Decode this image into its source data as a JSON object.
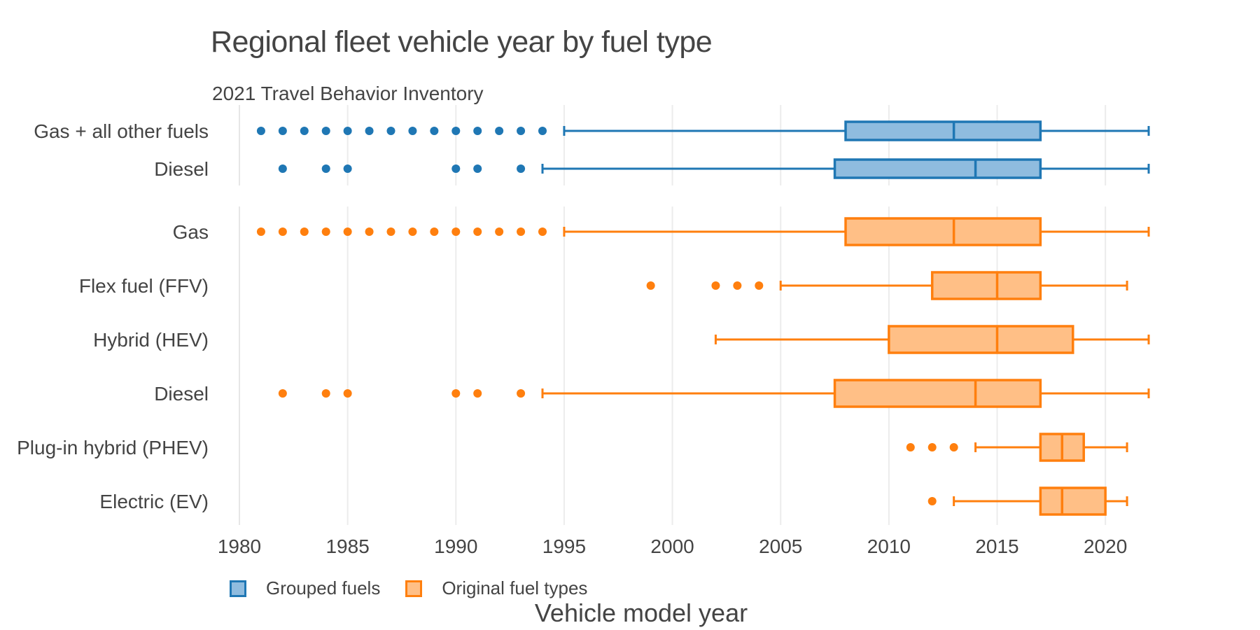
{
  "chart_data": {
    "type": "box",
    "title": "Regional fleet vehicle year by fuel type",
    "subtitle": "2021 Travel Behavior Inventory",
    "xlabel": "Vehicle model year",
    "ylabel": "",
    "xlim": [
      1979.5,
      2022.5
    ],
    "xticks": [
      1980,
      1985,
      1990,
      1995,
      2000,
      2005,
      2010,
      2015,
      2020
    ],
    "grid": "vertical",
    "legend_position": "bottom-left",
    "series": [
      {
        "name": "Grouped fuels",
        "stroke": "#1f77b4",
        "fill": "#8fbcdf",
        "panel": "top",
        "boxes": [
          {
            "category": "Gas + all other fuels",
            "lower_whisker": 1995,
            "q1": 2008,
            "median": 2013,
            "q3": 2017,
            "upper_whisker": 2022,
            "outliers": [
              1981,
              1982,
              1983,
              1984,
              1985,
              1986,
              1987,
              1988,
              1989,
              1990,
              1991,
              1992,
              1993,
              1994
            ]
          },
          {
            "category": "Diesel",
            "lower_whisker": 1994,
            "q1": 2007.5,
            "median": 2014,
            "q3": 2017,
            "upper_whisker": 2022,
            "outliers": [
              1982,
              1984,
              1985,
              1990,
              1991,
              1993
            ]
          }
        ]
      },
      {
        "name": "Original fuel types",
        "stroke": "#ff7f0e",
        "fill": "#ffbf86",
        "panel": "bottom",
        "boxes": [
          {
            "category": "Gas",
            "lower_whisker": 1995,
            "q1": 2008,
            "median": 2013,
            "q3": 2017,
            "upper_whisker": 2022,
            "outliers": [
              1981,
              1982,
              1983,
              1984,
              1985,
              1986,
              1987,
              1988,
              1989,
              1990,
              1991,
              1992,
              1993,
              1994
            ]
          },
          {
            "category": "Flex fuel (FFV)",
            "lower_whisker": 2005,
            "q1": 2012,
            "median": 2015,
            "q3": 2017,
            "upper_whisker": 2021,
            "outliers": [
              1999,
              2002,
              2003,
              2004
            ]
          },
          {
            "category": "Hybrid (HEV)",
            "lower_whisker": 2002,
            "q1": 2010,
            "median": 2015,
            "q3": 2018.5,
            "upper_whisker": 2022,
            "outliers": []
          },
          {
            "category": "Diesel",
            "lower_whisker": 1994,
            "q1": 2007.5,
            "median": 2014,
            "q3": 2017,
            "upper_whisker": 2022,
            "outliers": [
              1982,
              1984,
              1985,
              1990,
              1991,
              1993
            ]
          },
          {
            "category": "Plug-in hybrid (PHEV)",
            "lower_whisker": 2014,
            "q1": 2017,
            "median": 2018,
            "q3": 2019,
            "upper_whisker": 2021,
            "outliers": [
              2011,
              2012,
              2013
            ]
          },
          {
            "category": "Electric (EV)",
            "lower_whisker": 2013,
            "q1": 2017,
            "median": 2018,
            "q3": 2020,
            "upper_whisker": 2021,
            "outliers": [
              2012
            ]
          }
        ]
      }
    ]
  }
}
